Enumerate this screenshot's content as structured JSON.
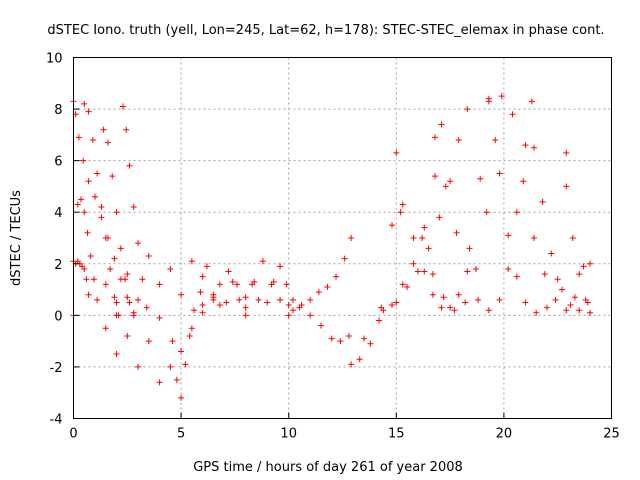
{
  "chart_data": {
    "type": "scatter",
    "title": "dSTEC Iono. truth (yell, Lon=245, Lat=62, h=178): STEC-STEC_elemax in phase cont.",
    "xlabel": "GPS time / hours of day 261 of year 2008",
    "ylabel": "dSTEC  / TECUs",
    "xlim": [
      0,
      25
    ],
    "ylim": [
      -4,
      10
    ],
    "xticks": [
      "0",
      "5",
      "10",
      "15",
      "20",
      "25"
    ],
    "yticks": [
      "-4",
      "-2",
      "0",
      "2",
      "4",
      "6",
      "8",
      "10"
    ],
    "grid": true,
    "marker": "+",
    "color": "#ff0000",
    "series": [
      {
        "x": [
          0.0,
          0.1,
          0.25,
          0.45,
          0.7,
          1.0,
          1.3,
          1.6,
          1.9,
          2.2,
          2.5,
          2.8
        ],
        "y": [
          8.3,
          7.8,
          6.9,
          6.0,
          5.2,
          4.6,
          3.8,
          3.0,
          2.2,
          1.4,
          0.7,
          0.1
        ]
      },
      {
        "x": [
          0.5,
          0.7,
          0.9,
          1.1,
          1.3,
          1.5,
          1.7,
          1.9,
          2.1
        ],
        "y": [
          8.2,
          7.9,
          6.8,
          5.5,
          4.2,
          3.0,
          1.8,
          0.7,
          0.0
        ]
      },
      {
        "x": [
          1.4,
          1.6,
          1.8,
          2.0,
          2.2,
          2.4,
          2.6,
          2.8
        ],
        "y": [
          7.2,
          6.7,
          5.4,
          4.0,
          2.6,
          1.4,
          0.5,
          0.0
        ]
      },
      {
        "x": [
          2.3,
          2.45,
          2.6,
          2.8,
          3.0,
          3.2,
          3.4
        ],
        "y": [
          8.1,
          7.2,
          5.8,
          4.2,
          2.8,
          1.4,
          0.3
        ]
      },
      {
        "x": [
          0.0,
          0.1,
          0.2,
          0.3,
          0.4,
          0.5,
          0.6,
          0.7
        ],
        "y": [
          2.1,
          2.0,
          2.1,
          2.0,
          1.9,
          1.8,
          1.4,
          0.8
        ]
      },
      {
        "x": [
          0.2,
          0.35,
          0.5,
          0.65,
          0.8,
          0.95,
          1.1
        ],
        "y": [
          4.3,
          4.5,
          4.0,
          3.2,
          2.3,
          1.4,
          0.6
        ]
      },
      {
        "x": [
          0.0,
          2.0,
          4.0,
          6.0,
          8.0,
          10.0,
          11.0,
          11.5,
          12.0,
          12.4,
          12.8
        ],
        "y": [
          0.0,
          0.0,
          -0.1,
          0.1,
          0.0,
          0.0,
          0.0,
          -0.4,
          -0.9,
          -1.0,
          -0.8
        ]
      },
      {
        "x": [
          1.5,
          2.0,
          2.5,
          3.0,
          3.5,
          4.0,
          4.5,
          5.0,
          5.5,
          6.0,
          6.5
        ],
        "y": [
          -0.5,
          -1.5,
          -0.8,
          -2.0,
          -1.0,
          -2.6,
          -2.0,
          -1.4,
          -0.5,
          0.4,
          0.8
        ]
      },
      {
        "x": [
          1.5,
          2.0,
          2.5,
          3.0,
          3.5,
          4.0,
          4.5,
          5.0,
          5.5,
          6.0,
          6.5
        ],
        "y": [
          1.2,
          0.5,
          1.6,
          0.6,
          2.3,
          1.2,
          1.8,
          0.8,
          2.1,
          1.5,
          0.6
        ]
      },
      {
        "x": [
          4.6,
          4.8,
          5.0,
          5.2,
          5.4
        ],
        "y": [
          -1.0,
          -2.5,
          -3.2,
          -1.9,
          -0.8
        ]
      },
      {
        "x": [
          5.6,
          5.9,
          6.2,
          6.5,
          6.8,
          7.1,
          7.4,
          7.7,
          8.0,
          8.3,
          8.6
        ],
        "y": [
          0.2,
          0.9,
          1.9,
          0.7,
          0.4,
          0.5,
          1.3,
          0.6,
          0.3,
          1.2,
          0.6
        ]
      },
      {
        "x": [
          6.8,
          7.2,
          7.6,
          8.0,
          8.4,
          8.8,
          9.2,
          9.6,
          10.0
        ],
        "y": [
          1.2,
          1.7,
          1.2,
          0.7,
          1.3,
          2.1,
          1.2,
          0.6,
          0.4
        ]
      },
      {
        "x": [
          9.0,
          9.3,
          9.6,
          9.9,
          10.2,
          10.5
        ],
        "y": [
          0.5,
          1.3,
          1.9,
          1.2,
          0.6,
          0.3
        ]
      },
      {
        "x": [
          10.2,
          10.6,
          11.0,
          11.4,
          11.8,
          12.2,
          12.6,
          12.9
        ],
        "y": [
          0.2,
          0.4,
          0.6,
          0.9,
          1.1,
          1.5,
          2.2,
          3.0
        ]
      },
      {
        "x": [
          12.9,
          13.3,
          13.8,
          14.3,
          14.8,
          15.0,
          15.2
        ],
        "y": [
          -1.9,
          -1.7,
          -1.1,
          0.3,
          3.5,
          6.3,
          4.0
        ]
      },
      {
        "x": [
          13.5,
          14.2,
          14.8,
          15.3,
          15.8,
          16.3,
          16.8,
          17.1
        ],
        "y": [
          -0.9,
          -0.2,
          0.4,
          1.2,
          2.0,
          3.4,
          5.4,
          7.4
        ]
      },
      {
        "x": [
          14.4,
          15.0,
          15.5,
          16.0,
          16.5,
          17.0,
          17.5,
          17.9,
          18.3
        ],
        "y": [
          0.2,
          0.5,
          1.1,
          1.7,
          2.6,
          3.8,
          5.2,
          6.8,
          8.0
        ]
      },
      {
        "x": [
          15.3,
          15.8,
          16.3,
          16.7,
          17.1,
          17.5,
          17.9,
          18.4,
          18.9,
          19.3
        ],
        "y": [
          4.3,
          3.0,
          1.7,
          0.8,
          0.3,
          0.3,
          0.8,
          2.6,
          5.3,
          8.4
        ]
      },
      {
        "x": [
          16.2,
          16.7,
          17.2,
          17.7,
          18.2,
          18.7,
          19.2,
          19.6,
          19.9
        ],
        "y": [
          3.0,
          1.6,
          0.7,
          0.2,
          0.5,
          1.8,
          4.0,
          6.8,
          8.5
        ]
      },
      {
        "x": [
          16.8,
          17.3,
          17.8,
          18.3,
          18.8,
          19.3,
          19.8,
          20.2,
          20.6,
          21.0,
          21.3
        ],
        "y": [
          6.9,
          5.0,
          3.2,
          1.7,
          0.6,
          0.2,
          0.6,
          1.8,
          4.0,
          6.6,
          8.3
        ]
      },
      {
        "x": [
          19.3,
          19.8,
          20.2,
          20.6,
          21.0,
          21.5,
          22.0,
          22.5,
          22.9
        ],
        "y": [
          8.3,
          5.5,
          3.1,
          1.5,
          0.5,
          0.1,
          0.3,
          1.4,
          6.3
        ]
      },
      {
        "x": [
          20.4,
          20.9,
          21.4,
          21.9,
          22.4,
          22.9,
          23.3,
          23.7,
          24.0
        ],
        "y": [
          7.8,
          5.2,
          3.0,
          1.6,
          0.6,
          0.2,
          0.7,
          1.9,
          2.0
        ]
      },
      {
        "x": [
          21.4,
          21.8,
          22.2,
          22.7,
          23.1,
          23.5,
          23.9
        ],
        "y": [
          6.5,
          4.4,
          2.4,
          1.0,
          0.4,
          0.2,
          0.5
        ]
      },
      {
        "x": [
          22.9,
          23.2,
          23.5,
          23.8,
          24.0
        ],
        "y": [
          5.0,
          3.0,
          1.6,
          0.6,
          0.1
        ]
      }
    ]
  }
}
